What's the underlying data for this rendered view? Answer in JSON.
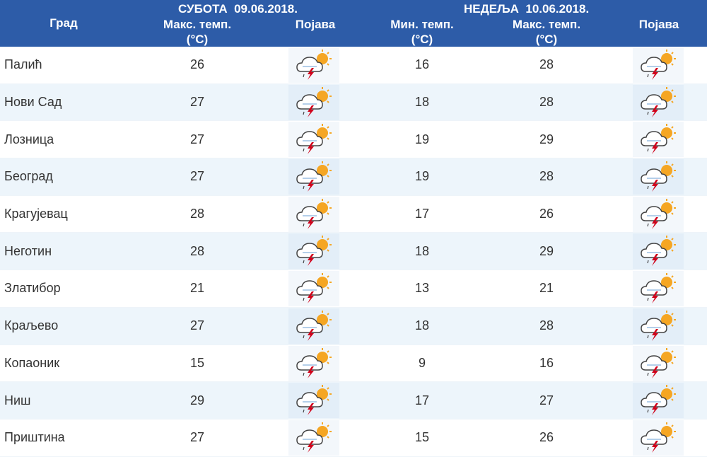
{
  "header": {
    "city_label": "Град",
    "saturday": {
      "day_date": "СУБОТА  09.06.2018.",
      "max_label": "Макс. темп.",
      "max_unit": "(°C)",
      "phenomenon_label": "Појава"
    },
    "sunday": {
      "day_date": "НЕДЕЉА  10.06.2018.",
      "min_label": "Мин. темп.",
      "min_unit": "(°C)",
      "max_label": "Макс. темп.",
      "max_unit": "(°C)",
      "phenomenon_label": "Појава"
    }
  },
  "colors": {
    "header_bg": "#2d5ca8",
    "row_alt_bg": "#edf5fb",
    "text": "#333333",
    "sun": "#f5a623",
    "lightning": "#d0021b"
  },
  "icon": "partly-cloudy-thunderstorm-icon",
  "rows": [
    {
      "city": "Палић",
      "sat_max": "26",
      "sun_min": "16",
      "sun_max": "28"
    },
    {
      "city": "Нови Сад",
      "sat_max": "27",
      "sun_min": "18",
      "sun_max": "28"
    },
    {
      "city": "Лозница",
      "sat_max": "27",
      "sun_min": "19",
      "sun_max": "29"
    },
    {
      "city": "Београд",
      "sat_max": "27",
      "sun_min": "19",
      "sun_max": "28"
    },
    {
      "city": "Крагујевац",
      "sat_max": "28",
      "sun_min": "17",
      "sun_max": "26"
    },
    {
      "city": "Неготин",
      "sat_max": "28",
      "sun_min": "18",
      "sun_max": "29"
    },
    {
      "city": "Златибор",
      "sat_max": "21",
      "sun_min": "13",
      "sun_max": "21"
    },
    {
      "city": "Краљево",
      "sat_max": "27",
      "sun_min": "18",
      "sun_max": "28"
    },
    {
      "city": "Копаоник",
      "sat_max": "15",
      "sun_min": "9",
      "sun_max": "16"
    },
    {
      "city": "Ниш",
      "sat_max": "29",
      "sun_min": "17",
      "sun_max": "27"
    },
    {
      "city": "Приштина",
      "sat_max": "27",
      "sun_min": "15",
      "sun_max": "26"
    }
  ]
}
